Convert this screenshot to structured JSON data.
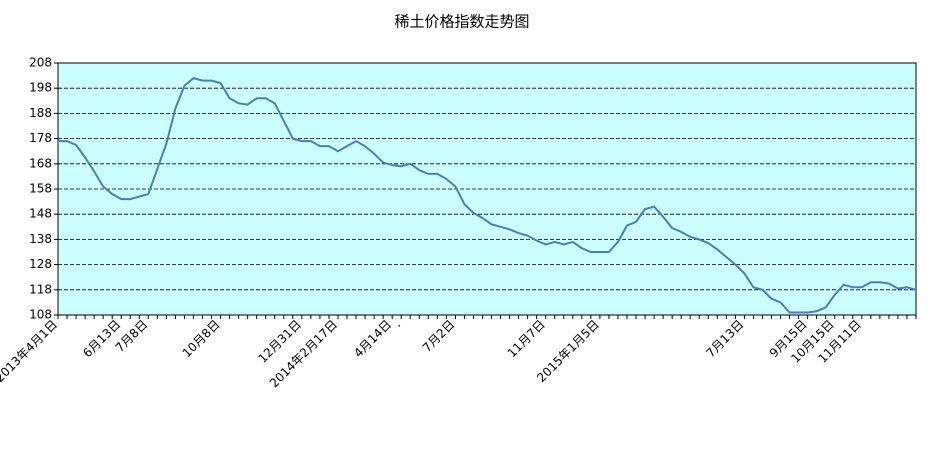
{
  "chart_data": {
    "type": "line",
    "title": "稀土价格指数走势图",
    "categories": [
      "2013年4月1日",
      null,
      null,
      null,
      null,
      null,
      null,
      "6月13日",
      null,
      null,
      "7月8日",
      null,
      null,
      null,
      null,
      null,
      null,
      null,
      "10月8日",
      null,
      null,
      null,
      null,
      null,
      null,
      null,
      null,
      "12月31日",
      null,
      null,
      null,
      "2014年2月17日",
      null,
      null,
      null,
      null,
      null,
      "4月14日",
      ".",
      null,
      null,
      null,
      null,
      null,
      "7月2日",
      null,
      null,
      null,
      null,
      null,
      null,
      null,
      null,
      null,
      "11月7日",
      null,
      null,
      null,
      null,
      null,
      "2015年1月5日",
      null,
      null,
      null,
      null,
      null,
      null,
      null,
      null,
      null,
      null,
      null,
      null,
      null,
      null,
      null,
      "7月13日",
      null,
      null,
      null,
      null,
      null,
      null,
      "9月15日",
      null,
      null,
      "10月15日",
      null,
      null,
      "11月11日",
      null,
      null,
      null,
      null,
      null,
      null
    ],
    "series": [
      {
        "name": "稀土价格指数",
        "color": "#4a7ebb",
        "values": [
          177,
          177,
          175.5,
          170.5,
          165,
          159,
          156,
          154,
          154,
          155,
          156,
          166,
          176,
          190,
          199,
          202,
          201,
          201,
          200,
          194,
          192,
          191.5,
          194,
          194,
          192,
          185,
          178,
          177,
          177,
          175,
          175,
          173,
          175,
          177,
          175,
          172,
          168.5,
          167.5,
          167,
          168,
          165.5,
          164,
          164,
          162,
          159,
          152,
          148.5,
          146.5,
          144,
          143,
          142,
          140.5,
          139.5,
          137.5,
          136,
          137,
          136,
          137,
          134.5,
          133,
          133,
          133,
          137,
          143.5,
          145,
          150,
          151,
          147,
          142.5,
          141,
          139,
          138,
          136.5,
          134,
          131,
          128,
          124.5,
          119,
          118,
          114.5,
          113,
          109,
          109,
          109,
          109.5,
          111,
          116,
          120,
          119,
          119,
          121,
          121,
          120.5,
          118.5,
          119,
          118
        ]
      }
    ],
    "ylim": [
      108,
      208
    ],
    "yticks": [
      108,
      118,
      128,
      138,
      148,
      158,
      168,
      178,
      188,
      198,
      208
    ],
    "grid": true,
    "plot_background": "#ccffff"
  }
}
